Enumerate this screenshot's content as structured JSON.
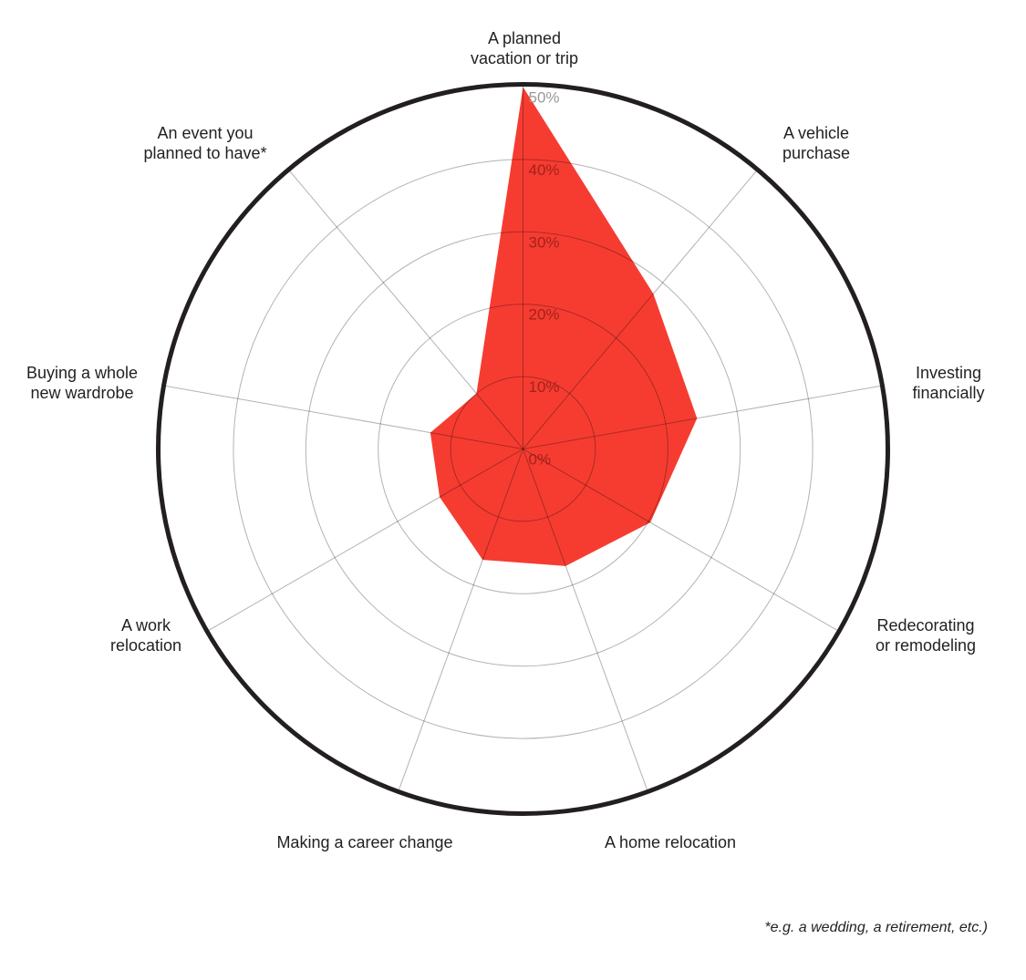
{
  "chart_data": {
    "type": "radar",
    "categories": [
      "A planned\nvacation or trip",
      "A vehicle\npurchase",
      "Investing\nfinancially",
      "Redecorating\nor remodeling",
      "A home relocation",
      "Making a career change",
      "A work\nrelocation",
      "Buying a whole\nnew wardrobe",
      "An event you\nplanned to have*"
    ],
    "values": [
      50,
      28,
      24.4,
      20.3,
      17.2,
      16.3,
      13.3,
      13,
      10
    ],
    "rlim": [
      0,
      50
    ],
    "r_ticks": [
      "0%",
      "10%",
      "20%",
      "30%",
      "40%",
      "50%"
    ],
    "grid": true,
    "colors": {
      "fill": "#f63c31",
      "outline": "#231f20",
      "grid": "#b3b3b3"
    }
  },
  "footnote": "*e.g. a wedding, a retirement, etc.)"
}
